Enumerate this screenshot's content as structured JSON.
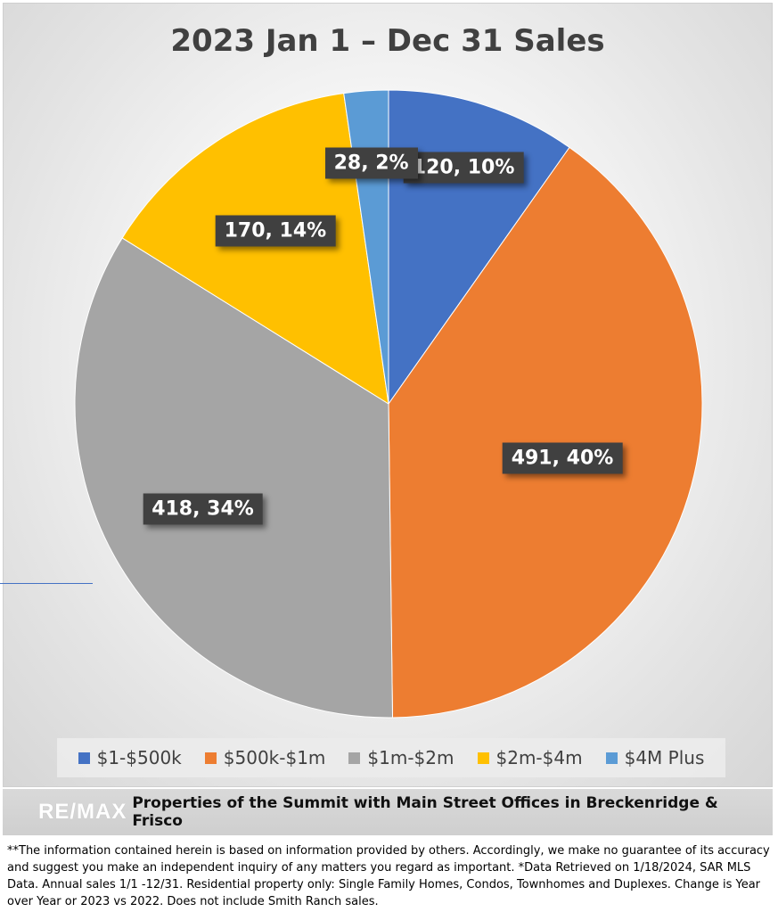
{
  "chart_data": {
    "type": "pie",
    "title": "2023 Jan 1 – Dec 31 Sales",
    "categories": [
      "$1-$500k",
      "$500k-$1m",
      "$1m-$2m",
      "$2m-$4m",
      "$4M Plus"
    ],
    "values": [
      120,
      491,
      418,
      170,
      28
    ],
    "percents": [
      10,
      40,
      34,
      14,
      2
    ],
    "data_labels": [
      "120, 10%",
      "491, 40%",
      "418, 34%",
      "170, 14%",
      "28, 2%"
    ],
    "colors": [
      "#4472C4",
      "#ED7D31",
      "#A5A5A5",
      "#FFC000",
      "#5B9BD5"
    ],
    "start_angle": "12 o'clock",
    "direction": "clockwise",
    "legend": "bottom"
  },
  "banner": {
    "logo": "RE/MAX",
    "text": "Properties of the Summit with Main Street Offices in Breckenridge & Frisco"
  },
  "disclaimer": "**The information contained herein is based on information provided by others. Accordingly, we make no guarantee of its accuracy and suggest you make an independent inquiry of any matters you regard as important. *Data Retrieved on 1/18/2024, SAR MLS Data. Annual sales 1/1 -12/31. Residential property only: Single Family Homes, Condos, Townhomes and Duplexes. Change is Year over Year or 2023 vs 2022. Does not include Smith Ranch sales."
}
